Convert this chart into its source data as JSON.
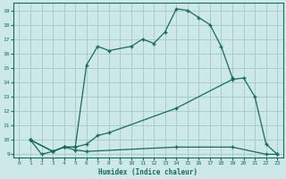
{
  "title": "",
  "xlabel": "Humidex (Indice chaleur)",
  "bg_color": "#cce8e8",
  "grid_color": "#aacccc",
  "line_color": "#1a6a5a",
  "xlim": [
    -0.5,
    23.5
  ],
  "ylim": [
    8.8,
    19.5
  ],
  "xticks": [
    0,
    1,
    2,
    3,
    4,
    5,
    6,
    7,
    8,
    9,
    10,
    11,
    12,
    13,
    14,
    15,
    16,
    17,
    18,
    19,
    20,
    21,
    22,
    23
  ],
  "yticks": [
    9,
    10,
    11,
    12,
    13,
    14,
    15,
    16,
    17,
    18,
    19
  ],
  "line1_x": [
    1,
    2,
    3,
    4,
    5,
    6,
    7,
    8,
    10,
    11,
    12,
    13,
    14,
    15,
    16,
    17,
    18,
    19
  ],
  "line1_y": [
    10,
    9.0,
    9.2,
    9.5,
    9.5,
    15.2,
    16.5,
    16.2,
    16.5,
    17.0,
    16.7,
    17.5,
    19.1,
    19.0,
    18.5,
    18.0,
    16.5,
    14.3
  ],
  "line2_x": [
    1,
    3,
    4,
    5,
    6,
    7,
    8,
    14,
    19,
    20,
    21,
    22,
    23
  ],
  "line2_y": [
    10,
    9.2,
    9.5,
    9.5,
    9.7,
    10.3,
    10.5,
    12.2,
    14.2,
    14.3,
    13.0,
    9.7,
    9.0
  ],
  "line3_x": [
    1,
    3,
    4,
    5,
    6,
    14,
    19,
    22,
    23
  ],
  "line3_y": [
    10,
    9.2,
    9.5,
    9.3,
    9.2,
    9.5,
    9.5,
    9.0,
    9.0
  ]
}
